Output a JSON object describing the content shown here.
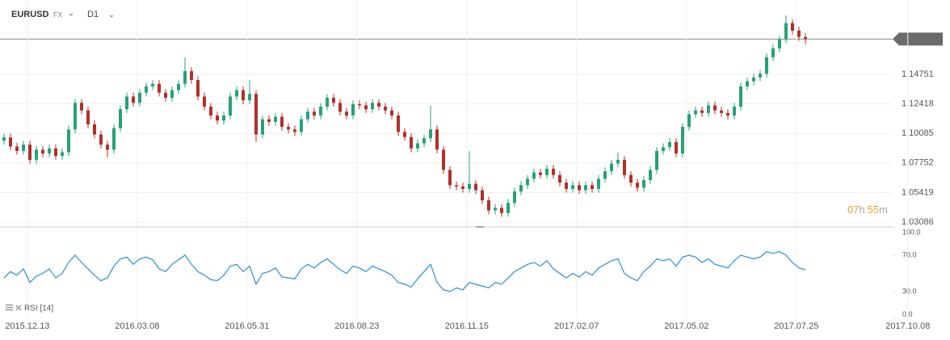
{
  "header": {
    "symbol": "EURUSD",
    "market": "FX",
    "interval": "D1",
    "countdown": [
      "07",
      "h",
      "55",
      "m"
    ]
  },
  "chart_data": [
    {
      "type": "candlestick",
      "up_color": "#26a17b",
      "down_color": "#b0302a",
      "last_price": 1.17538,
      "grid": true,
      "ylim": [
        1.027,
        1.2062
      ],
      "yticks": [
        1.03086,
        1.05419,
        1.07752,
        1.10085,
        1.12418,
        1.14751
      ],
      "xlim": [
        -0.625,
        146.375
      ],
      "xticks": [
        {
          "value": 3.6,
          "label": "2015.12.13"
        },
        {
          "value": 20.6,
          "label": "2016.03.08"
        },
        {
          "value": 37.6,
          "label": "2016.05.31"
        },
        {
          "value": 54.6,
          "label": "2016.08.23"
        },
        {
          "value": 71.6,
          "label": "2016.11.15"
        },
        {
          "value": 88.6,
          "label": "2017.02.07"
        },
        {
          "value": 105.6,
          "label": "2017.05.02"
        },
        {
          "value": 122.6,
          "label": "2017.07.25"
        },
        {
          "value": 139.85,
          "label": "2017.10.08"
        }
      ],
      "ohlc": [
        [
          1.095,
          1.1007,
          1.092,
          1.0977
        ],
        [
          1.0977,
          1.1007,
          1.0875,
          1.0905
        ],
        [
          1.0905,
          1.0935,
          1.084,
          1.087
        ],
        [
          1.087,
          1.095,
          1.084,
          1.092
        ],
        [
          1.092,
          1.095,
          1.077,
          1.08
        ],
        [
          1.08,
          1.091,
          1.077,
          1.088
        ],
        [
          1.088,
          1.091,
          1.082,
          1.085
        ],
        [
          1.085,
          1.092,
          1.082,
          1.089
        ],
        [
          1.089,
          1.092,
          1.08,
          1.083
        ],
        [
          1.083,
          1.089,
          1.08,
          1.086
        ],
        [
          1.086,
          1.107,
          1.083,
          1.104
        ],
        [
          1.104,
          1.128,
          1.101,
          1.125
        ],
        [
          1.125,
          1.128,
          1.116,
          1.119
        ],
        [
          1.119,
          1.122,
          1.105,
          1.108
        ],
        [
          1.108,
          1.111,
          1.097,
          1.1
        ],
        [
          1.1,
          1.103,
          1.089,
          1.092
        ],
        [
          1.092,
          1.095,
          1.082,
          1.088
        ],
        [
          1.088,
          1.108,
          1.085,
          1.105
        ],
        [
          1.105,
          1.123,
          1.102,
          1.12
        ],
        [
          1.12,
          1.133,
          1.117,
          1.13
        ],
        [
          1.13,
          1.133,
          1.122,
          1.125
        ],
        [
          1.125,
          1.136,
          1.122,
          1.133
        ],
        [
          1.133,
          1.141,
          1.13,
          1.138
        ],
        [
          1.138,
          1.143,
          1.135,
          1.14
        ],
        [
          1.14,
          1.143,
          1.13,
          1.133
        ],
        [
          1.133,
          1.136,
          1.126,
          1.129
        ],
        [
          1.129,
          1.138,
          1.126,
          1.135
        ],
        [
          1.135,
          1.143,
          1.132,
          1.14
        ],
        [
          1.14,
          1.161,
          1.137,
          1.15
        ],
        [
          1.15,
          1.153,
          1.14,
          1.143
        ],
        [
          1.143,
          1.146,
          1.127,
          1.13
        ],
        [
          1.13,
          1.133,
          1.119,
          1.122
        ],
        [
          1.122,
          1.125,
          1.112,
          1.115
        ],
        [
          1.115,
          1.118,
          1.108,
          1.111
        ],
        [
          1.111,
          1.118,
          1.108,
          1.115
        ],
        [
          1.115,
          1.133,
          1.112,
          1.13
        ],
        [
          1.13,
          1.138,
          1.127,
          1.135
        ],
        [
          1.135,
          1.138,
          1.124,
          1.127
        ],
        [
          1.127,
          1.143,
          1.124,
          1.132
        ],
        [
          1.132,
          1.135,
          1.094,
          1.1
        ],
        [
          1.1,
          1.115,
          1.097,
          1.112
        ],
        [
          1.112,
          1.115,
          1.107,
          1.11
        ],
        [
          1.11,
          1.117,
          1.107,
          1.114
        ],
        [
          1.114,
          1.117,
          1.103,
          1.106
        ],
        [
          1.106,
          1.109,
          1.101,
          1.104
        ],
        [
          1.104,
          1.107,
          1.099,
          1.102
        ],
        [
          1.102,
          1.115,
          1.099,
          1.112
        ],
        [
          1.112,
          1.121,
          1.109,
          1.118
        ],
        [
          1.118,
          1.121,
          1.112,
          1.115
        ],
        [
          1.115,
          1.125,
          1.112,
          1.122
        ],
        [
          1.122,
          1.132,
          1.119,
          1.129
        ],
        [
          1.129,
          1.132,
          1.122,
          1.125
        ],
        [
          1.125,
          1.128,
          1.115,
          1.118
        ],
        [
          1.118,
          1.121,
          1.112,
          1.115
        ],
        [
          1.115,
          1.127,
          1.112,
          1.124
        ],
        [
          1.124,
          1.127,
          1.12,
          1.123
        ],
        [
          1.123,
          1.126,
          1.117,
          1.12
        ],
        [
          1.12,
          1.128,
          1.117,
          1.125
        ],
        [
          1.125,
          1.128,
          1.119,
          1.122
        ],
        [
          1.122,
          1.125,
          1.116,
          1.119
        ],
        [
          1.119,
          1.122,
          1.112,
          1.115
        ],
        [
          1.115,
          1.118,
          1.099,
          1.102
        ],
        [
          1.102,
          1.105,
          1.095,
          1.098
        ],
        [
          1.098,
          1.101,
          1.086,
          1.089
        ],
        [
          1.089,
          1.096,
          1.086,
          1.093
        ],
        [
          1.093,
          1.1,
          1.09,
          1.097
        ],
        [
          1.097,
          1.123,
          1.094,
          1.104
        ],
        [
          1.104,
          1.107,
          1.085,
          1.088
        ],
        [
          1.088,
          1.091,
          1.069,
          1.072
        ],
        [
          1.072,
          1.075,
          1.057,
          1.06
        ],
        [
          1.06,
          1.063,
          1.056,
          1.059
        ],
        [
          1.059,
          1.062,
          1.054,
          1.057
        ],
        [
          1.057,
          1.087,
          1.054,
          1.061
        ],
        [
          1.061,
          1.064,
          1.053,
          1.056
        ],
        [
          1.056,
          1.059,
          1.045,
          1.048
        ],
        [
          1.048,
          1.051,
          1.037,
          1.04
        ],
        [
          1.04,
          1.045,
          1.037,
          1.042
        ],
        [
          1.042,
          1.045,
          1.035,
          1.038
        ],
        [
          1.038,
          1.049,
          1.035,
          1.046
        ],
        [
          1.046,
          1.058,
          1.043,
          1.055
        ],
        [
          1.055,
          1.063,
          1.052,
          1.06
        ],
        [
          1.06,
          1.068,
          1.057,
          1.065
        ],
        [
          1.065,
          1.073,
          1.062,
          1.07
        ],
        [
          1.07,
          1.073,
          1.065,
          1.068
        ],
        [
          1.068,
          1.076,
          1.065,
          1.073
        ],
        [
          1.073,
          1.076,
          1.065,
          1.068
        ],
        [
          1.068,
          1.071,
          1.059,
          1.062
        ],
        [
          1.062,
          1.065,
          1.054,
          1.057
        ],
        [
          1.057,
          1.063,
          1.054,
          1.06
        ],
        [
          1.06,
          1.063,
          1.053,
          1.056
        ],
        [
          1.056,
          1.063,
          1.053,
          1.06
        ],
        [
          1.06,
          1.063,
          1.054,
          1.057
        ],
        [
          1.057,
          1.068,
          1.054,
          1.065
        ],
        [
          1.065,
          1.074,
          1.062,
          1.071
        ],
        [
          1.071,
          1.08,
          1.068,
          1.077
        ],
        [
          1.077,
          1.086,
          1.074,
          1.08
        ],
        [
          1.08,
          1.083,
          1.065,
          1.068
        ],
        [
          1.068,
          1.071,
          1.059,
          1.062
        ],
        [
          1.062,
          1.065,
          1.055,
          1.058
        ],
        [
          1.058,
          1.067,
          1.055,
          1.064
        ],
        [
          1.064,
          1.075,
          1.061,
          1.072
        ],
        [
          1.072,
          1.09,
          1.069,
          1.087
        ],
        [
          1.087,
          1.093,
          1.084,
          1.09
        ],
        [
          1.09,
          1.097,
          1.087,
          1.094
        ],
        [
          1.094,
          1.097,
          1.082,
          1.085
        ],
        [
          1.085,
          1.109,
          1.082,
          1.106
        ],
        [
          1.106,
          1.119,
          1.103,
          1.116
        ],
        [
          1.116,
          1.122,
          1.113,
          1.119
        ],
        [
          1.119,
          1.122,
          1.114,
          1.117
        ],
        [
          1.117,
          1.126,
          1.114,
          1.123
        ],
        [
          1.123,
          1.126,
          1.116,
          1.119
        ],
        [
          1.119,
          1.122,
          1.114,
          1.117
        ],
        [
          1.117,
          1.12,
          1.112,
          1.115
        ],
        [
          1.115,
          1.125,
          1.112,
          1.122
        ],
        [
          1.122,
          1.141,
          1.119,
          1.138
        ],
        [
          1.138,
          1.145,
          1.135,
          1.142
        ],
        [
          1.142,
          1.148,
          1.139,
          1.145
        ],
        [
          1.145,
          1.151,
          1.142,
          1.148
        ],
        [
          1.148,
          1.164,
          1.145,
          1.161
        ],
        [
          1.161,
          1.171,
          1.158,
          1.168
        ],
        [
          1.168,
          1.178,
          1.165,
          1.175
        ],
        [
          1.175,
          1.194,
          1.172,
          1.188
        ],
        [
          1.188,
          1.191,
          1.179,
          1.182
        ],
        [
          1.182,
          1.185,
          1.174,
          1.177
        ],
        [
          1.177,
          1.18,
          1.171,
          1.1754
        ]
      ]
    },
    {
      "type": "line",
      "label": "RSI [14]",
      "color": "#2b8fd8",
      "ylim": [
        0,
        100
      ],
      "yticks": [
        {
          "value": 100,
          "label": "100.0"
        },
        {
          "value": 70,
          "label": "70.0"
        },
        {
          "value": 30,
          "label": "30.0"
        },
        {
          "value": 0,
          "label": "0.0"
        }
      ],
      "values": [
        45,
        52,
        48,
        55,
        40,
        47,
        50,
        55,
        45,
        50,
        62,
        70,
        62,
        55,
        48,
        42,
        45,
        58,
        66,
        68,
        60,
        66,
        68,
        65,
        55,
        52,
        60,
        65,
        70,
        60,
        52,
        48,
        43,
        42,
        48,
        58,
        60,
        52,
        58,
        38,
        50,
        52,
        56,
        46,
        45,
        44,
        55,
        60,
        56,
        62,
        66,
        60,
        54,
        50,
        58,
        56,
        52,
        58,
        55,
        52,
        48,
        40,
        38,
        35,
        44,
        52,
        60,
        40,
        32,
        30,
        34,
        32,
        40,
        38,
        36,
        34,
        40,
        38,
        45,
        52,
        56,
        60,
        62,
        58,
        64,
        55,
        50,
        45,
        50,
        46,
        52,
        48,
        56,
        60,
        64,
        66,
        50,
        45,
        42,
        52,
        58,
        66,
        64,
        66,
        58,
        68,
        70,
        68,
        62,
        66,
        60,
        58,
        56,
        64,
        70,
        68,
        66,
        68,
        74,
        72,
        74,
        70,
        62,
        56,
        54
      ]
    }
  ]
}
